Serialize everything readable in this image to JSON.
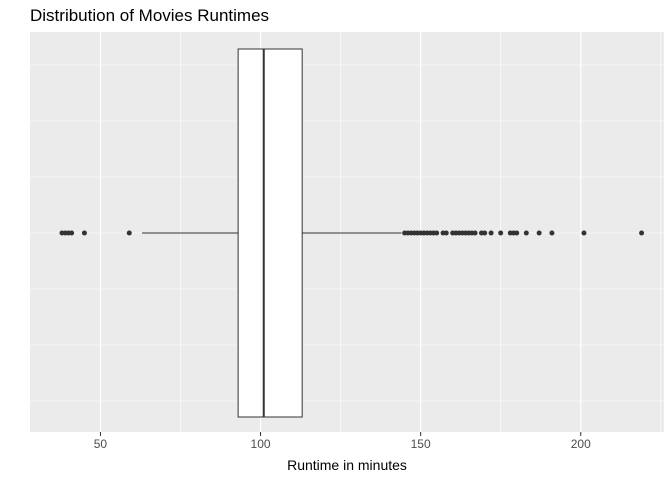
{
  "chart_data": {
    "type": "boxplot",
    "title": "Distribution of Movies Runtimes",
    "xlabel": "Runtime in minutes",
    "ylabel": "",
    "xlim": [
      28,
      226
    ],
    "x_ticks": [
      50,
      100,
      150,
      200
    ],
    "grid": true,
    "orientation": "horizontal",
    "box": {
      "whisker_low": 63,
      "q1": 93,
      "median": 101,
      "q3": 113,
      "whisker_high": 144
    },
    "outliers": [
      38,
      39,
      40,
      41,
      45,
      59,
      145,
      146,
      147,
      148,
      149,
      150,
      151,
      152,
      153,
      154,
      155,
      157,
      158,
      160,
      161,
      162,
      163,
      164,
      165,
      166,
      167,
      169,
      170,
      172,
      175,
      178,
      179,
      180,
      183,
      187,
      191,
      201,
      219
    ],
    "colors": {
      "panel": "#ebebeb",
      "grid": "#ffffff",
      "box_fill": "#ffffff",
      "box_stroke": "#333333",
      "outlier": "#333333"
    }
  }
}
